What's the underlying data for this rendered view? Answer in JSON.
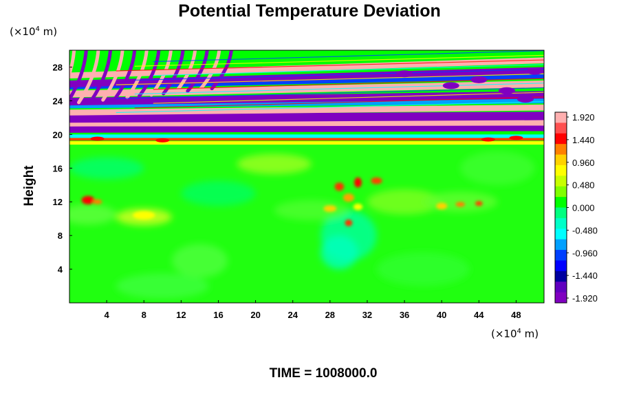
{
  "chart_data": {
    "type": "heatmap",
    "title": "Potential Temperature Deviation",
    "ylabel": "Height",
    "x_unit": "(×10",
    "x_unit_exp": "4",
    "x_unit_tail": " m)",
    "y_unit": "(×10",
    "y_unit_exp": "4",
    "y_unit_tail": " m)",
    "x_ticks": [
      "4",
      "8",
      "12",
      "16",
      "20",
      "24",
      "28",
      "32",
      "36",
      "40",
      "44",
      "48"
    ],
    "y_ticks": [
      "4",
      "8",
      "12",
      "16",
      "20",
      "24",
      "28"
    ],
    "xlim": [
      0,
      51
    ],
    "ylim": [
      0,
      30
    ],
    "colorbar": {
      "ticks": [
        "1.920",
        "1.440",
        "0.960",
        "0.480",
        "0.000",
        "-0.480",
        "-0.960",
        "-1.440",
        "-1.920"
      ],
      "range": [
        -1.92,
        1.92
      ],
      "colors_top_to_bottom": [
        "#ffb0b0",
        "#ff5050",
        "#ff0000",
        "#ff8000",
        "#ffd200",
        "#ffff00",
        "#c8ff00",
        "#80ff00",
        "#00ff00",
        "#00ff80",
        "#00ffc8",
        "#00ffff",
        "#00a0ff",
        "#0040ff",
        "#0000ff",
        "#0000a0",
        "#6000c0",
        "#8000c0"
      ]
    },
    "time_label": "TIME = 1008000.0"
  }
}
